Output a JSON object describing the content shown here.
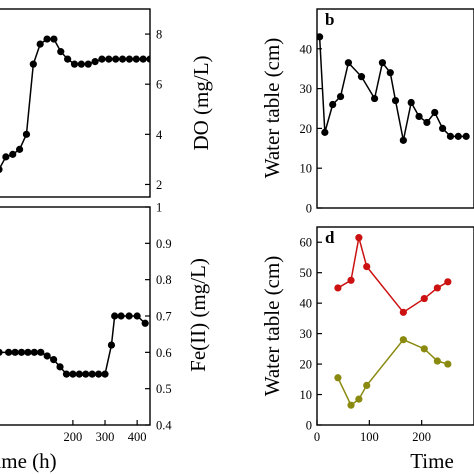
{
  "chart_data": [
    {
      "panel": "a",
      "type": "line",
      "panel_label": "",
      "y_axis_side": "right",
      "ylabel": "DO (mg/L)",
      "xlim": [
        0,
        440
      ],
      "ylim": [
        1.5,
        9.0
      ],
      "yticks": [
        2,
        4,
        6,
        8
      ],
      "xticks": [],
      "grid": false,
      "series": [
        {
          "color": "#000000",
          "x": [
            0,
            20,
            40,
            60,
            80,
            100,
            120,
            140,
            160,
            180,
            200,
            220,
            240,
            260,
            280,
            300,
            320,
            340,
            360,
            380,
            400,
            420,
            440
          ],
          "y": [
            2.6,
            3.1,
            3.2,
            3.4,
            4.0,
            6.8,
            7.6,
            7.8,
            7.8,
            7.3,
            7.0,
            6.8,
            6.8,
            6.8,
            6.9,
            7.0,
            7.0,
            7.0,
            7.0,
            7.0,
            7.0,
            7.0,
            7.0
          ]
        }
      ]
    },
    {
      "panel": "b",
      "type": "line",
      "panel_label": "b",
      "y_axis_side": "left",
      "ylabel": "Water table (cm)",
      "xlim": [
        0,
        300
      ],
      "ylim": [
        0,
        50
      ],
      "yticks": [
        0,
        10,
        20,
        30,
        40
      ],
      "xticks": [],
      "grid": false,
      "series": [
        {
          "color": "#000000",
          "x": [
            5,
            15,
            30,
            45,
            60,
            85,
            110,
            125,
            140,
            150,
            165,
            180,
            195,
            210,
            225,
            240,
            255,
            270,
            285
          ],
          "y": [
            43,
            19,
            26,
            28,
            36.5,
            33,
            27.5,
            36.5,
            34,
            27,
            17,
            26.5,
            23,
            21.5,
            24,
            20,
            18,
            18,
            18
          ]
        }
      ]
    },
    {
      "panel": "c",
      "type": "line",
      "panel_label": "",
      "y_axis_side": "right",
      "xlabel": "Time (h)",
      "ylabel": "Fe(II) (mg/L)",
      "xlim": [
        -30,
        440
      ],
      "ylim": [
        0.4,
        1.0
      ],
      "yticks": [
        0.4,
        0.5,
        0.6,
        0.7,
        0.8,
        0.9,
        1.0
      ],
      "xticks": [
        200,
        300,
        400
      ],
      "grid": false,
      "series": [
        {
          "color": "#000000",
          "x": [
            -30,
            0,
            20,
            40,
            60,
            80,
            100,
            120,
            140,
            160,
            180,
            200,
            220,
            240,
            260,
            280,
            300,
            320,
            330,
            350,
            375,
            400,
            425
          ],
          "y": [
            0.6,
            0.6,
            0.6,
            0.6,
            0.6,
            0.6,
            0.6,
            0.59,
            0.58,
            0.56,
            0.54,
            0.54,
            0.54,
            0.54,
            0.54,
            0.54,
            0.54,
            0.62,
            0.7,
            0.7,
            0.7,
            0.7,
            0.68
          ]
        }
      ]
    },
    {
      "panel": "d",
      "type": "line",
      "panel_label": "d",
      "y_axis_side": "left",
      "xlabel": "Time",
      "ylabel": "Water table (cm)",
      "xlim": [
        0,
        300
      ],
      "ylim": [
        0,
        65
      ],
      "yticks": [
        0,
        10,
        20,
        30,
        40,
        50,
        60
      ],
      "xticks": [
        0,
        100,
        200
      ],
      "grid": false,
      "series": [
        {
          "color": "#cc1111",
          "x": [
            40,
            65,
            80,
            95,
            165,
            205,
            230,
            250
          ],
          "y": [
            45,
            47.5,
            61.5,
            52,
            37,
            41.5,
            45,
            47
          ]
        },
        {
          "color": "#8a8a10",
          "x": [
            40,
            65,
            80,
            95,
            165,
            205,
            230,
            250
          ],
          "y": [
            15.5,
            6.5,
            8.5,
            13,
            28,
            25,
            21,
            20
          ]
        }
      ]
    }
  ]
}
